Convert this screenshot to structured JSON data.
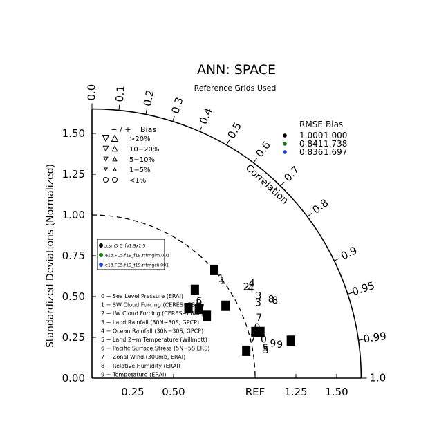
{
  "chart_data": {
    "type": "scatter",
    "title": "ANN: SPACE",
    "subtitle": "Reference Grids Used",
    "ylabel": "Standardized Deviations (Normalized)",
    "correlation_label": "Correlation",
    "ref_label": "REF",
    "xticks": [
      {
        "v": 0.25,
        "label": "0.25"
      },
      {
        "v": 0.5,
        "label": "0.50"
      },
      {
        "v": 1.0,
        "label": "REF"
      },
      {
        "v": 1.25,
        "label": "1.25"
      },
      {
        "v": 1.5,
        "label": "1.50"
      }
    ],
    "yticks": [
      {
        "v": 0.0,
        "label": "0.00"
      },
      {
        "v": 0.25,
        "label": "0.25"
      },
      {
        "v": 0.5,
        "label": "0.50"
      },
      {
        "v": 0.75,
        "label": "0.75"
      },
      {
        "v": 1.0,
        "label": "1.00"
      },
      {
        "v": 1.25,
        "label": "1.25"
      },
      {
        "v": 1.5,
        "label": "1.50"
      }
    ],
    "corr_ticks": [
      {
        "v": 0.0,
        "label": "0.0"
      },
      {
        "v": 0.1,
        "label": "0.1"
      },
      {
        "v": 0.2,
        "label": "0.2"
      },
      {
        "v": 0.3,
        "label": "0.3"
      },
      {
        "v": 0.4,
        "label": "0.4"
      },
      {
        "v": 0.5,
        "label": "0.5"
      },
      {
        "v": 0.6,
        "label": "0.6"
      },
      {
        "v": 0.7,
        "label": "0.7"
      },
      {
        "v": 0.8,
        "label": "0.8"
      },
      {
        "v": 0.9,
        "label": "0.9"
      },
      {
        "v": 0.95,
        "label": "0.95"
      },
      {
        "v": 0.99,
        "label": "0.99"
      },
      {
        "v": 1.0,
        "label": "1.0"
      }
    ],
    "rmse_ref_radius": 1.0,
    "outer_radius": 1.65,
    "bias_legend": {
      "header_sign": "− / +",
      "header_label": "Bias",
      "rows": [
        {
          "label": ">20%",
          "size": 1.0
        },
        {
          "label": "10−20%",
          "size": 0.82
        },
        {
          "label": "5−10%",
          "size": 0.65
        },
        {
          "label": "1−5%",
          "size": 0.48
        },
        {
          "label": "<1%",
          "size": 0
        }
      ]
    },
    "stats_table": {
      "headers": [
        "RMSE",
        "Bias"
      ],
      "rows": [
        {
          "color": "#000000",
          "rmse": "1.000",
          "bias": "1.000"
        },
        {
          "color": "#1a7a1a",
          "rmse": "0.841",
          "bias": "1.738"
        },
        {
          "color": "#1f3fd6",
          "rmse": "0.836",
          "bias": "1.697"
        }
      ]
    },
    "series": [
      {
        "name": "ccsm3_5_fv1.9x2.5",
        "color": "#000000",
        "points": [
          {
            "id": "0",
            "sd": 1.07,
            "corr": 0.965
          },
          {
            "id": "1",
            "sd": 0.83,
            "corr": 0.76
          },
          {
            "id": "2",
            "sd": 0.93,
            "corr": 0.88
          },
          {
            "id": "3",
            "sd": 0.73,
            "corr": 0.81
          },
          {
            "id": "4",
            "sd": 1.0,
            "corr": 0.75
          },
          {
            "id": "5",
            "sd": 0.96,
            "corr": 0.985
          },
          {
            "id": "6",
            "sd": 0.78,
            "corr": 0.84
          },
          {
            "id": "7",
            "sd": 1.04,
            "corr": 0.963
          },
          {
            "id": "8",
            "sd": 0.8,
            "corr": 0.88
          },
          {
            "id": "9",
            "sd": 1.24,
            "corr": 0.983
          }
        ]
      },
      {
        "name": ".e13.FC5.f19_f19.rrtmglm.001",
        "color": "#1a7a1a",
        "points": [
          {
            "id": "0",
            "sd": 1.06,
            "corr": 0.955
          },
          {
            "id": "1",
            "sd": 1.0,
            "corr": 0.8
          },
          {
            "id": "2",
            "sd": 1.1,
            "corr": 0.86
          },
          {
            "id": "3",
            "sd": 1.14,
            "corr": 0.896
          },
          {
            "id": "4",
            "sd": 1.14,
            "corr": 0.86
          },
          {
            "id": "5",
            "sd": 1.08,
            "corr": 0.985
          },
          {
            "id": "6",
            "sd": 0.81,
            "corr": 0.81
          },
          {
            "id": "7",
            "sd": 1.09,
            "corr": 0.94
          },
          {
            "id": "8",
            "sd": 1.22,
            "corr": 0.92
          },
          {
            "id": "9",
            "sd": 1.13,
            "corr": 0.982
          }
        ]
      },
      {
        "name": ".e13.FC5.f19_f19.rrtmgcli.001",
        "color": "#1f3fd6",
        "points": [
          {
            "id": "0",
            "sd": 1.08,
            "corr": 0.975
          },
          {
            "id": "1",
            "sd": 1.0,
            "corr": 0.79
          },
          {
            "id": "2",
            "sd": 1.1,
            "corr": 0.86
          },
          {
            "id": "3",
            "sd": 1.12,
            "corr": 0.91
          },
          {
            "id": "4",
            "sd": 1.12,
            "corr": 0.87
          },
          {
            "id": "5",
            "sd": 1.08,
            "corr": 0.987
          },
          {
            "id": "6",
            "sd": 0.79,
            "corr": 0.83
          },
          {
            "id": "7",
            "sd": 1.02,
            "corr": 0.97
          },
          {
            "id": "8",
            "sd": 1.2,
            "corr": 0.915
          },
          {
            "id": "9",
            "sd": 1.17,
            "corr": 0.984
          }
        ]
      }
    ],
    "variables": [
      "0 − Sea Level Pressure (ERAI)",
      "1 − SW Cloud Forcing (CERES−EBAF)",
      "2 − LW Cloud Forcing (CERES−EBAF)",
      "3 − Land Rainfall (30N−30S, GPCP)",
      "4 − Ocean Rainfall (30N−30S, GPCP)",
      "5 − Land 2−m Temperature (Willmott)",
      "6 − Pacific Surface Stress (5N−5S,ERS)",
      "7 − Zonal Wind (300mb, ERAI)",
      "8 − Relative Humidity (ERAI)",
      "9 − Temperature (ERAI)"
    ]
  }
}
